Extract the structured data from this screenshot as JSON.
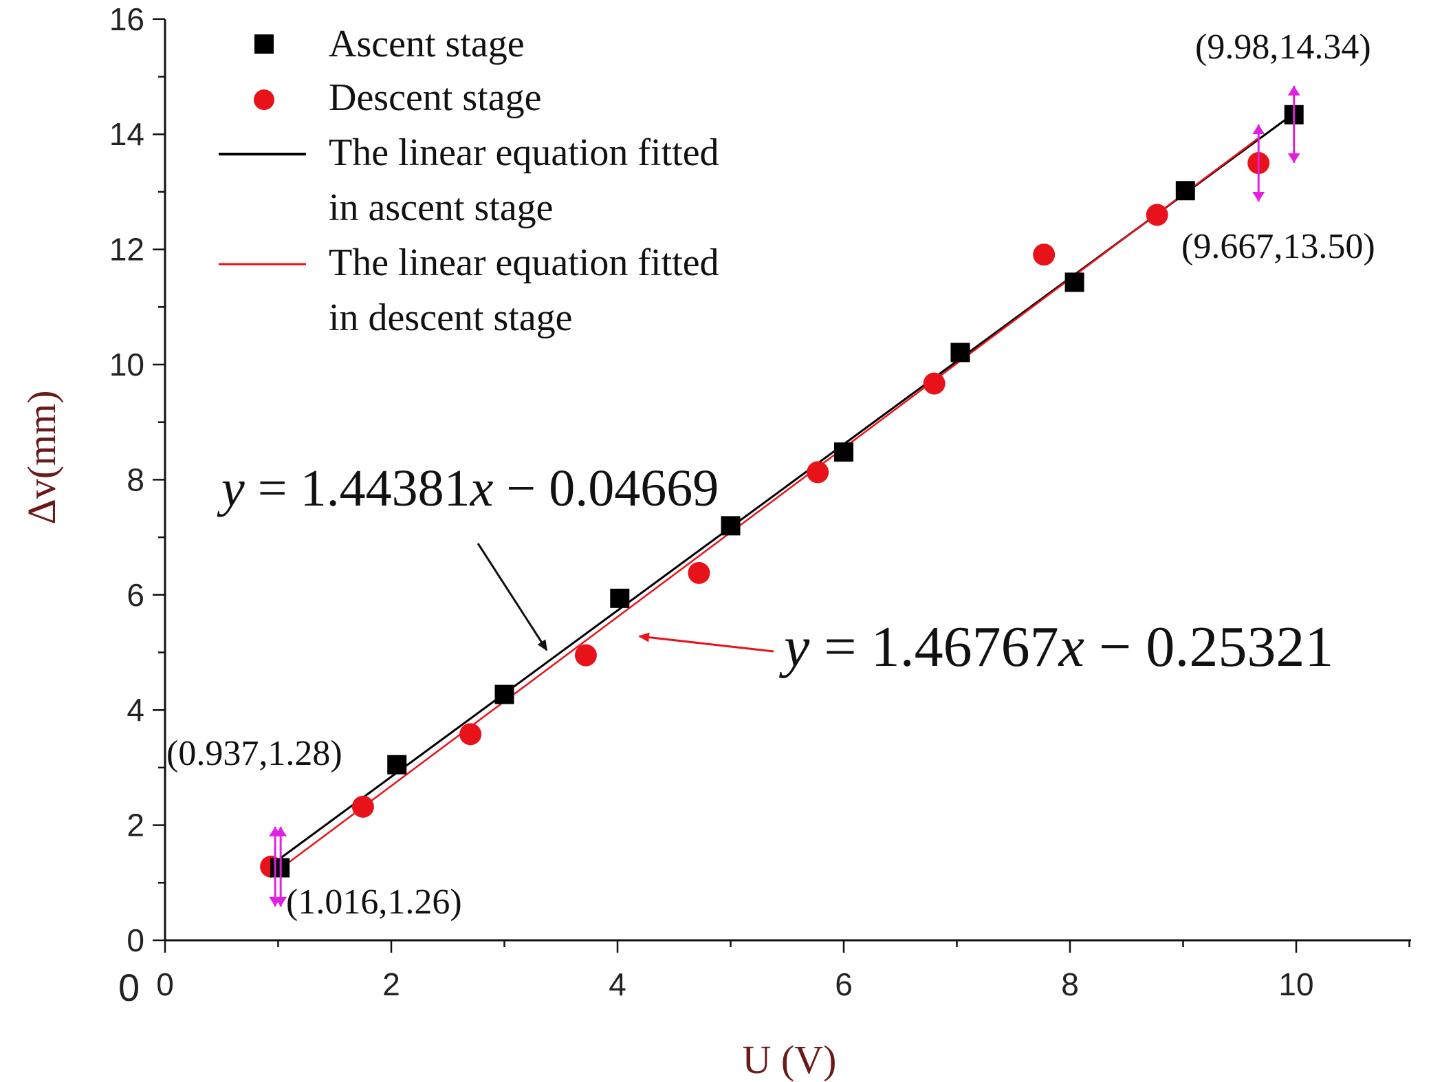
{
  "chart_data": {
    "type": "scatter",
    "xlabel": "U (V)",
    "ylabel": "Δv(mm)",
    "xlim": [
      0,
      11
    ],
    "ylim": [
      0,
      16
    ],
    "origin_label": "0",
    "xticks": [
      0,
      2,
      4,
      6,
      8,
      10
    ],
    "xtick_labels": [
      "0",
      "2",
      "4",
      "6",
      "8",
      "10"
    ],
    "yticks": [
      0,
      2,
      4,
      6,
      8,
      10,
      12,
      14,
      16
    ],
    "ytick_labels": [
      "0",
      "2",
      "4",
      "6",
      "8",
      "10",
      "12",
      "14",
      "16"
    ],
    "legend_position": "top-left",
    "series": [
      {
        "name": "Ascent stage",
        "marker": "square",
        "color": "#000000",
        "points": [
          [
            1.016,
            1.26
          ],
          [
            2.05,
            3.05
          ],
          [
            3.0,
            4.27
          ],
          [
            4.02,
            5.94
          ],
          [
            5.0,
            7.2
          ],
          [
            6.0,
            8.48
          ],
          [
            7.03,
            10.21
          ],
          [
            8.04,
            11.43
          ],
          [
            9.02,
            13.02
          ],
          [
            9.98,
            14.34
          ]
        ]
      },
      {
        "name": "Descent stage",
        "marker": "circle",
        "color": "#e8121b",
        "points": [
          [
            0.937,
            1.28
          ],
          [
            1.75,
            2.32
          ],
          [
            2.7,
            3.58
          ],
          [
            3.72,
            4.95
          ],
          [
            4.72,
            6.38
          ],
          [
            5.77,
            8.13
          ],
          [
            6.8,
            9.67
          ],
          [
            7.77,
            11.91
          ],
          [
            8.77,
            12.6
          ],
          [
            9.667,
            13.5
          ]
        ]
      },
      {
        "name": "The linear equation fitted in ascent stage",
        "type": "line",
        "color": "#000000",
        "slope": 1.44381,
        "intercept": -0.04669,
        "x_range": [
          1.016,
          9.98
        ]
      },
      {
        "name": "The linear equation fitted in descent stage",
        "type": "line",
        "color": "#e8121b",
        "slope": 1.46767,
        "intercept": -0.25321,
        "x_range": [
          0.937,
          9.667
        ]
      }
    ],
    "legend": {
      "ascent": "Ascent stage",
      "descent": "Descent stage",
      "fit_ascent_line1": "The linear equation fitted",
      "fit_ascent_line2": "in ascent stage",
      "fit_descent_line1": "The linear equation fitted",
      "fit_descent_line2": "in descent stage"
    },
    "annotations": {
      "top_ascent": "(9.98,14.34)",
      "top_descent": "(9.667,13.50)",
      "bottom_descent": "(0.937,1.28)",
      "bottom_ascent": "(1.016,1.26)",
      "eq_ascent": {
        "y": "y",
        "eq1": " = 1.44381",
        "x": "x",
        "eq2": " − 0.04669"
      },
      "eq_descent": {
        "y": "y",
        "eq1": " = 1.46767",
        "x": "x",
        "eq2": " − 0.25321"
      }
    },
    "error_marker_color": "#e020e0"
  }
}
